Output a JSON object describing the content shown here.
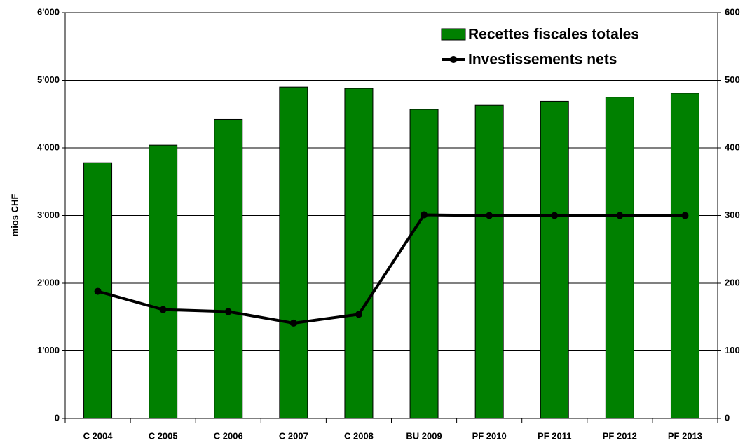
{
  "chart_data": {
    "type": "bar",
    "y_label": "mios CHF",
    "categories": [
      "C 2004",
      "C 2005",
      "C 2006",
      "C 2007",
      "C 2008",
      "BU 2009",
      "PF 2010",
      "PF 2011",
      "PF 2012",
      "PF 2013"
    ],
    "series": [
      {
        "name": "Recettes fiscales totales",
        "type": "bar",
        "color": "#008000",
        "values": [
          3780,
          4040,
          4420,
          4900,
          4880,
          4570,
          4630,
          4690,
          4750,
          4810
        ]
      },
      {
        "name": "Investissements nets",
        "type": "line",
        "axis": "y2",
        "color": "#000000",
        "values": [
          188,
          161,
          158,
          141,
          154,
          301,
          300,
          300,
          300,
          300
        ]
      }
    ],
    "ylim": [
      0,
      6000
    ],
    "yticks": [
      0,
      {
        "value": 1000,
        "label": "1'000"
      },
      {
        "value": 2000,
        "label": "2'000"
      },
      {
        "value": 3000,
        "label": "3'000"
      },
      {
        "value": 4000,
        "label": "4'000"
      },
      {
        "value": 5000,
        "label": "5'000"
      },
      {
        "value": 6000,
        "label": "6'000"
      }
    ],
    "y2lim": [
      0,
      600
    ],
    "y2ticks": [
      0,
      100,
      200,
      300,
      400,
      500,
      600
    ],
    "grid": true,
    "legend": "top-right"
  }
}
